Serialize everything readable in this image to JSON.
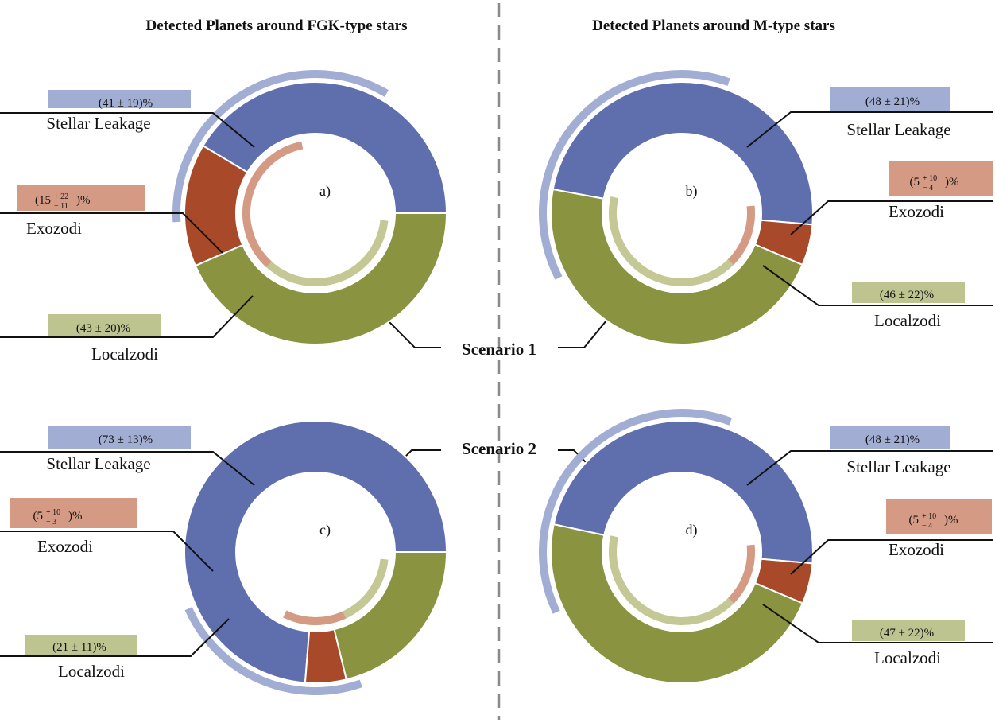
{
  "titles": {
    "left": "Detected Planets around FGK-type stars",
    "right": "Detected Planets around M-type stars"
  },
  "scenarios": {
    "s1": "Scenario 1",
    "s2": "Scenario 2"
  },
  "colors": {
    "stellar_leakage": "#5f6fae",
    "exozodi": "#a84a2a",
    "localzodi": "#8a933f",
    "stellar_leakage_light": "#a1add3",
    "exozodi_light": "#d49a84",
    "localzodi_light": "#c3c895",
    "stellar_leakage_box": "#a1add3",
    "exozodi_box": "#d49a84",
    "localzodi_box": "#bec48f"
  },
  "chart_data": [
    {
      "type": "pie",
      "panel": "a)",
      "group": "Detected Planets around FGK-type stars",
      "scenario": "Scenario 1",
      "categories": [
        "Stellar Leakage",
        "Exozodi",
        "Localzodi"
      ],
      "values": [
        41,
        15,
        43
      ],
      "errors": [
        [
          19,
          19
        ],
        [
          11,
          22
        ],
        [
          20,
          20
        ]
      ],
      "labels": {
        "stellar_leakage": "(41 ± 19)%",
        "exozodi_main": "(15",
        "exozodi_sup": "+ 22",
        "exozodi_sub": "− 11",
        "exozodi_end": ")%",
        "localzodi": "(43 ± 20)%"
      }
    },
    {
      "type": "pie",
      "panel": "b)",
      "group": "Detected Planets around M-type stars",
      "scenario": "Scenario 1",
      "categories": [
        "Stellar Leakage",
        "Exozodi",
        "Localzodi"
      ],
      "values": [
        48,
        5,
        46
      ],
      "errors": [
        [
          21,
          21
        ],
        [
          4,
          10
        ],
        [
          22,
          22
        ]
      ],
      "labels": {
        "stellar_leakage": "(48 ± 21)%",
        "exozodi_main": "(5",
        "exozodi_sup": "+ 10",
        "exozodi_sub": "− 4",
        "exozodi_end": ")%",
        "localzodi": "(46 ± 22)%"
      }
    },
    {
      "type": "pie",
      "panel": "c)",
      "group": "Detected Planets around FGK-type stars",
      "scenario": "Scenario 2",
      "categories": [
        "Stellar Leakage",
        "Exozodi",
        "Localzodi"
      ],
      "values": [
        73,
        5,
        21
      ],
      "errors": [
        [
          13,
          13
        ],
        [
          3,
          10
        ],
        [
          11,
          11
        ]
      ],
      "labels": {
        "stellar_leakage": "(73 ± 13)%",
        "exozodi_main": "(5",
        "exozodi_sup": "+ 10",
        "exozodi_sub": "− 3",
        "exozodi_end": ")%",
        "localzodi": "(21 ± 11)%"
      }
    },
    {
      "type": "pie",
      "panel": "d)",
      "group": "Detected Planets around M-type stars",
      "scenario": "Scenario 2",
      "categories": [
        "Stellar Leakage",
        "Exozodi",
        "Localzodi"
      ],
      "values": [
        48,
        5,
        47
      ],
      "errors": [
        [
          21,
          21
        ],
        [
          4,
          10
        ],
        [
          22,
          22
        ]
      ],
      "labels": {
        "stellar_leakage": "(48 ± 21)%",
        "exozodi_main": "(5",
        "exozodi_sup": "+ 10",
        "exozodi_sub": "− 4",
        "exozodi_end": ")%",
        "localzodi": "(47 ± 22)%"
      }
    }
  ]
}
